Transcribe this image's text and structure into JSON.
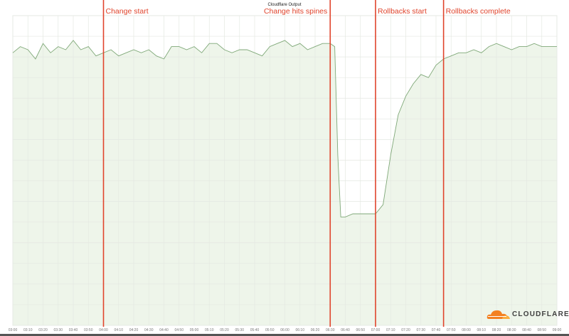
{
  "chart_data": {
    "type": "area",
    "title": "Cloudflare Output",
    "xlabel": "",
    "ylabel": "",
    "xlim": [
      "03:00",
      "09:00"
    ],
    "ylim": [
      0,
      100
    ],
    "y_units": "relative level (no y-axis labels shown)",
    "grid": true,
    "legend": "none",
    "x_ticks": [
      "03:00",
      "03:10",
      "03:20",
      "03:30",
      "03:40",
      "03:50",
      "04:00",
      "04:10",
      "04:20",
      "04:30",
      "04:40",
      "04:50",
      "05:00",
      "05:10",
      "05:20",
      "05:30",
      "05:40",
      "05:50",
      "06:00",
      "06:10",
      "06:20",
      "06:30",
      "06:40",
      "06:50",
      "07:00",
      "07:10",
      "07:20",
      "07:30",
      "07:40",
      "07:50",
      "08:00",
      "08:10",
      "08:20",
      "08:30",
      "08:40",
      "08:50",
      "09:00"
    ],
    "series": [
      {
        "color": "#7fa878",
        "fill": "#eef5ea",
        "points": [
          [
            "03:00",
            88
          ],
          [
            "03:05",
            90
          ],
          [
            "03:10",
            89
          ],
          [
            "03:15",
            86
          ],
          [
            "03:20",
            91
          ],
          [
            "03:25",
            88
          ],
          [
            "03:30",
            90
          ],
          [
            "03:35",
            89
          ],
          [
            "03:40",
            92
          ],
          [
            "03:45",
            89
          ],
          [
            "03:50",
            90
          ],
          [
            "03:55",
            87
          ],
          [
            "04:00",
            88
          ],
          [
            "04:05",
            89
          ],
          [
            "04:10",
            87
          ],
          [
            "04:15",
            88
          ],
          [
            "04:20",
            89
          ],
          [
            "04:25",
            88
          ],
          [
            "04:30",
            89
          ],
          [
            "04:35",
            87
          ],
          [
            "04:40",
            86
          ],
          [
            "04:45",
            90
          ],
          [
            "04:50",
            90
          ],
          [
            "04:55",
            89
          ],
          [
            "05:00",
            90
          ],
          [
            "05:05",
            88
          ],
          [
            "05:10",
            91
          ],
          [
            "05:15",
            91
          ],
          [
            "05:20",
            89
          ],
          [
            "05:25",
            88
          ],
          [
            "05:30",
            89
          ],
          [
            "05:35",
            89
          ],
          [
            "05:40",
            88
          ],
          [
            "05:45",
            87
          ],
          [
            "05:50",
            90
          ],
          [
            "05:55",
            91
          ],
          [
            "06:00",
            92
          ],
          [
            "06:05",
            90
          ],
          [
            "06:10",
            91
          ],
          [
            "06:15",
            89
          ],
          [
            "06:20",
            90
          ],
          [
            "06:25",
            91
          ],
          [
            "06:30",
            91
          ],
          [
            "06:33",
            90
          ],
          [
            "06:35",
            55
          ],
          [
            "06:37",
            35
          ],
          [
            "06:40",
            35
          ],
          [
            "06:45",
            36
          ],
          [
            "06:50",
            36
          ],
          [
            "06:55",
            36
          ],
          [
            "07:00",
            36
          ],
          [
            "07:05",
            39
          ],
          [
            "07:10",
            55
          ],
          [
            "07:15",
            68
          ],
          [
            "07:20",
            74
          ],
          [
            "07:25",
            78
          ],
          [
            "07:30",
            81
          ],
          [
            "07:35",
            80
          ],
          [
            "07:40",
            84
          ],
          [
            "07:45",
            86
          ],
          [
            "07:50",
            87
          ],
          [
            "07:55",
            88
          ],
          [
            "08:00",
            88
          ],
          [
            "08:05",
            89
          ],
          [
            "08:10",
            88
          ],
          [
            "08:15",
            90
          ],
          [
            "08:20",
            91
          ],
          [
            "08:25",
            90
          ],
          [
            "08:30",
            89
          ],
          [
            "08:35",
            90
          ],
          [
            "08:40",
            90
          ],
          [
            "08:45",
            91
          ],
          [
            "08:50",
            90
          ],
          [
            "08:55",
            90
          ],
          [
            "09:00",
            90
          ]
        ]
      }
    ],
    "annotations": [
      {
        "time": "04:00",
        "label": "Change start",
        "side": "right"
      },
      {
        "time": "06:30",
        "label": "Change hits spines",
        "side": "left"
      },
      {
        "time": "07:00",
        "label": "Rollbacks start",
        "side": "right"
      },
      {
        "time": "07:45",
        "label": "Rollbacks complete",
        "side": "right"
      }
    ],
    "annotation_color": "#e0442c"
  },
  "logo": {
    "text": "CLOUDFLARE",
    "color": "#f38020"
  }
}
